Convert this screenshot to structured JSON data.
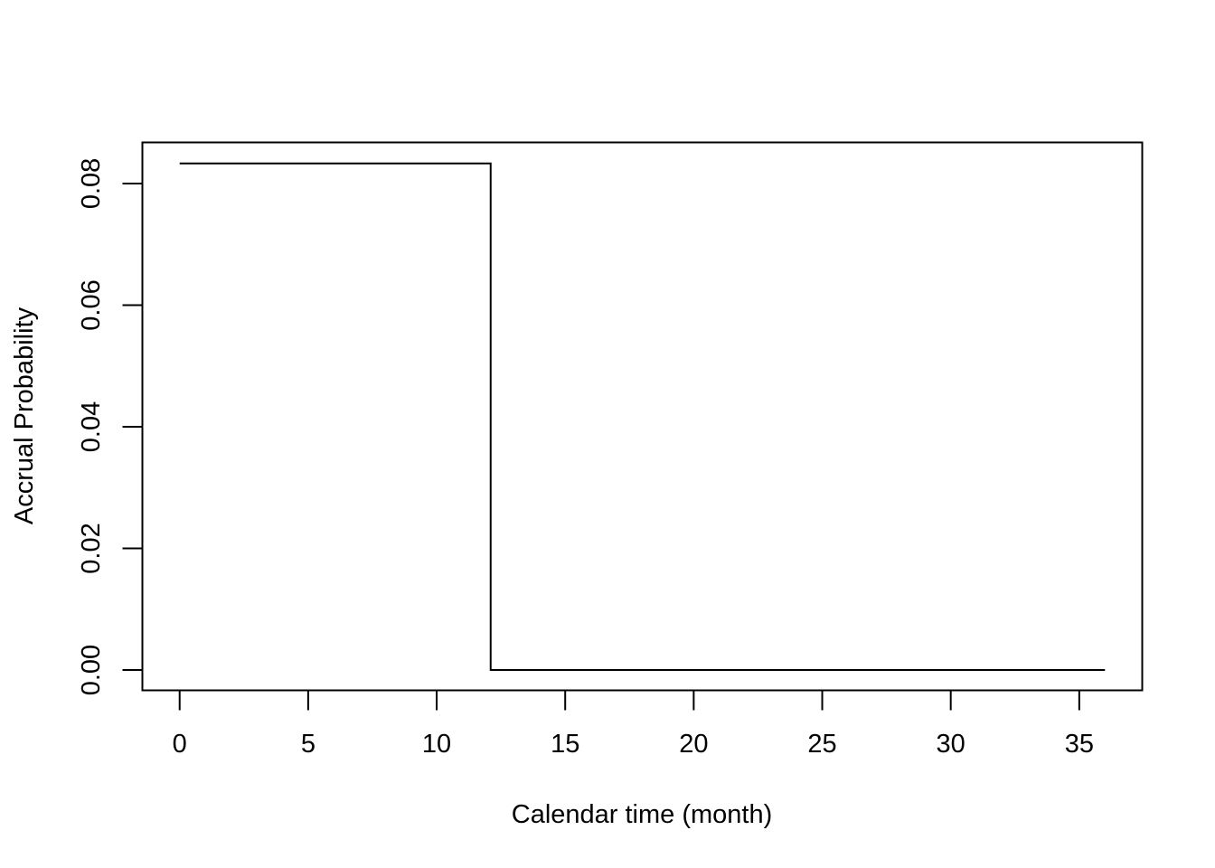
{
  "chart_data": {
    "type": "line",
    "step": true,
    "title": "",
    "xlabel": "Calendar time (month)",
    "ylabel": "Accrual Probability",
    "xlim": [
      -1.45,
      37.45
    ],
    "ylim": [
      -0.00334,
      0.08676
    ],
    "xticks": [
      0,
      5,
      10,
      15,
      20,
      25,
      30,
      35
    ],
    "xtick_labels": [
      "0",
      "5",
      "10",
      "15",
      "20",
      "25",
      "30",
      "35"
    ],
    "yticks": [
      0,
      0.02,
      0.04,
      0.06,
      0.08
    ],
    "ytick_labels": [
      "0.00",
      "0.02",
      "0.04",
      "0.06",
      "0.08"
    ],
    "grid": false,
    "box": true,
    "series": [
      {
        "x": [
          0,
          12.1,
          12.1,
          36
        ],
        "y": [
          0.0833,
          0.0833,
          0,
          0
        ],
        "color": "#000000"
      }
    ]
  }
}
